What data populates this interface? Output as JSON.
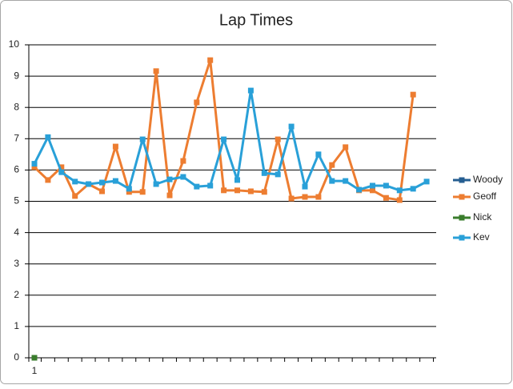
{
  "chart_data": {
    "type": "line",
    "title": "Lap Times",
    "categories": [
      "1",
      null,
      null,
      null,
      null,
      null,
      null,
      null,
      null,
      null,
      null,
      null,
      null,
      null,
      null,
      null,
      null,
      null,
      null,
      null,
      null,
      null,
      null,
      null,
      null,
      null,
      null,
      null,
      null,
      null
    ],
    "ylim": [
      0,
      10
    ],
    "yticks": [
      0,
      1,
      2,
      3,
      4,
      5,
      6,
      7,
      8,
      9,
      10
    ],
    "grid": true,
    "legend": "right",
    "series": [
      {
        "name": "Woody",
        "color": "#255e91",
        "values": [
          0,
          null,
          null,
          null,
          null,
          null,
          null,
          null,
          null,
          null,
          null,
          null,
          null,
          null,
          null,
          null,
          null,
          null,
          null,
          null,
          null,
          null,
          null,
          null,
          null,
          null,
          null,
          null,
          null,
          null
        ]
      },
      {
        "name": "Geoff",
        "color": "#ed7d31",
        "values": [
          6.09,
          5.68,
          6.09,
          5.17,
          5.55,
          5.32,
          6.75,
          5.3,
          5.3,
          9.16,
          5.19,
          6.29,
          8.16,
          9.51,
          5.35,
          5.35,
          5.32,
          5.3,
          6.98,
          5.09,
          5.14,
          5.14,
          6.16,
          6.73,
          5.35,
          5.35,
          5.11,
          5.04,
          8.41,
          null
        ]
      },
      {
        "name": "Nick",
        "color": "#3a7d2c",
        "values": [
          0,
          null,
          null,
          null,
          null,
          null,
          null,
          null,
          null,
          null,
          null,
          null,
          null,
          null,
          null,
          null,
          null,
          null,
          null,
          null,
          null,
          null,
          null,
          null,
          null,
          null,
          null,
          null,
          null,
          null
        ]
      },
      {
        "name": "Kev",
        "color": "#29a0d8",
        "values": [
          6.2,
          7.05,
          5.93,
          5.63,
          5.55,
          5.6,
          5.65,
          5.4,
          6.98,
          5.55,
          5.7,
          5.78,
          5.47,
          5.5,
          6.98,
          5.68,
          8.54,
          5.9,
          5.86,
          7.39,
          5.47,
          6.5,
          5.65,
          5.65,
          5.37,
          5.5,
          5.5,
          5.35,
          5.4,
          5.63
        ]
      }
    ]
  }
}
